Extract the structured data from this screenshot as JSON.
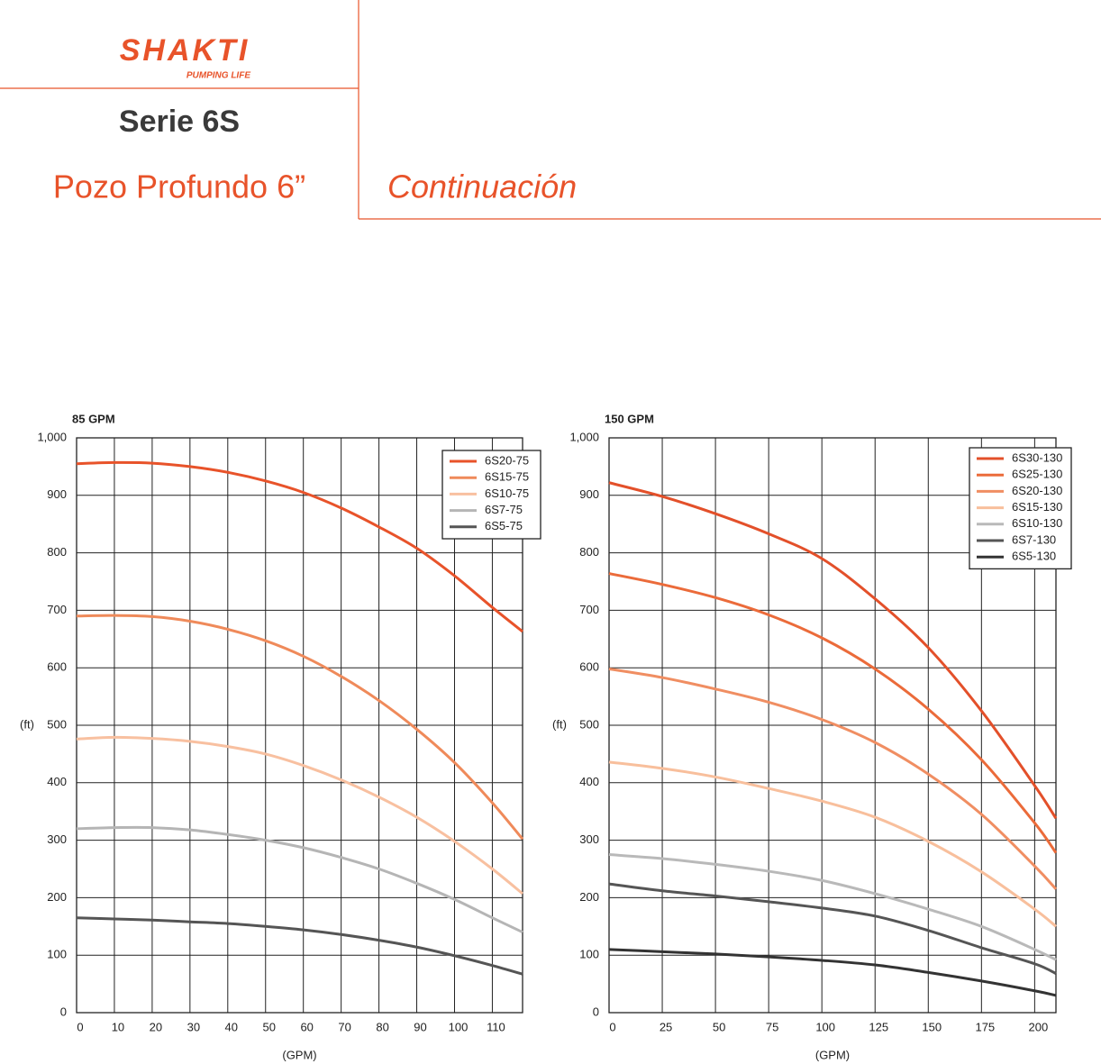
{
  "header": {
    "logo": "SHAKTI",
    "tagline": "PUMPING LIFE",
    "series": "Serie 6S",
    "subtitle": "Pozo Profundo 6”",
    "continuation": "Continuación"
  },
  "chart_data": [
    {
      "type": "line",
      "title": "85 GPM",
      "y_label": "(ft)",
      "x_label": "(GPM)",
      "x": [
        0,
        10,
        20,
        30,
        40,
        50,
        60,
        70,
        80,
        90,
        100,
        110,
        118
      ],
      "series": [
        {
          "name": "6S20-75",
          "color": "#e8532a",
          "values": [
            955,
            957,
            956,
            950,
            940,
            925,
            905,
            878,
            845,
            808,
            760,
            705,
            663
          ]
        },
        {
          "name": "6S15-75",
          "color": "#ef8a5a",
          "values": [
            690,
            691,
            689,
            681,
            667,
            647,
            620,
            585,
            543,
            493,
            435,
            365,
            302
          ]
        },
        {
          "name": "6S10-75",
          "color": "#f8c0a0",
          "values": [
            476,
            479,
            477,
            472,
            463,
            450,
            430,
            405,
            375,
            340,
            298,
            250,
            207
          ]
        },
        {
          "name": "6S7-75",
          "color": "#b5b5b5",
          "values": [
            320,
            322,
            322,
            318,
            310,
            300,
            287,
            270,
            250,
            225,
            197,
            165,
            140
          ]
        },
        {
          "name": "6S5-75",
          "color": "#555555",
          "values": [
            165,
            163,
            161,
            158,
            155,
            150,
            144,
            136,
            126,
            114,
            99,
            82,
            67
          ]
        }
      ],
      "xlim": [
        0,
        118
      ],
      "xticks": [
        0,
        10,
        20,
        30,
        40,
        50,
        60,
        70,
        80,
        90,
        100,
        110
      ],
      "ylim": [
        0,
        1000
      ],
      "yticks": [
        0,
        100,
        200,
        300,
        400,
        500,
        600,
        700,
        800,
        900,
        {
          "value": 1000,
          "label": "1,000"
        }
      ],
      "grid": true,
      "legend": "upper right"
    },
    {
      "type": "line",
      "title": "150 GPM",
      "y_label": "(ft)",
      "x_label": "(GPM)",
      "x": [
        0,
        25,
        50,
        75,
        100,
        125,
        150,
        175,
        200,
        210
      ],
      "series": [
        {
          "name": "6S30-130",
          "color": "#e3502a",
          "values": [
            922,
            898,
            868,
            833,
            790,
            720,
            635,
            525,
            395,
            338
          ]
        },
        {
          "name": "6S25-130",
          "color": "#eb6b3a",
          "values": [
            764,
            745,
            722,
            692,
            652,
            598,
            528,
            440,
            330,
            278
          ]
        },
        {
          "name": "6S20-130",
          "color": "#f08e62",
          "values": [
            598,
            583,
            563,
            540,
            510,
            470,
            415,
            345,
            255,
            215
          ]
        },
        {
          "name": "6S15-130",
          "color": "#f8bf9c",
          "values": [
            436,
            425,
            410,
            390,
            368,
            340,
            298,
            245,
            180,
            150
          ]
        },
        {
          "name": "6S10-130",
          "color": "#b9b9b9",
          "values": [
            275,
            268,
            258,
            246,
            230,
            207,
            180,
            150,
            110,
            92
          ]
        },
        {
          "name": "6S7-130",
          "color": "#555555",
          "values": [
            224,
            212,
            203,
            193,
            182,
            168,
            143,
            113,
            85,
            68
          ]
        },
        {
          "name": "6S5-130",
          "color": "#333333",
          "values": [
            110,
            106,
            102,
            97,
            91,
            83,
            70,
            55,
            38,
            30
          ]
        }
      ],
      "xlim": [
        0,
        210
      ],
      "xticks": [
        0,
        25,
        50,
        75,
        100,
        125,
        150,
        175,
        200
      ],
      "ylim": [
        0,
        1000
      ],
      "yticks": [
        0,
        100,
        200,
        300,
        400,
        500,
        600,
        700,
        800,
        900,
        {
          "value": 1000,
          "label": "1,000"
        }
      ],
      "grid": true,
      "legend": "upper right"
    }
  ]
}
